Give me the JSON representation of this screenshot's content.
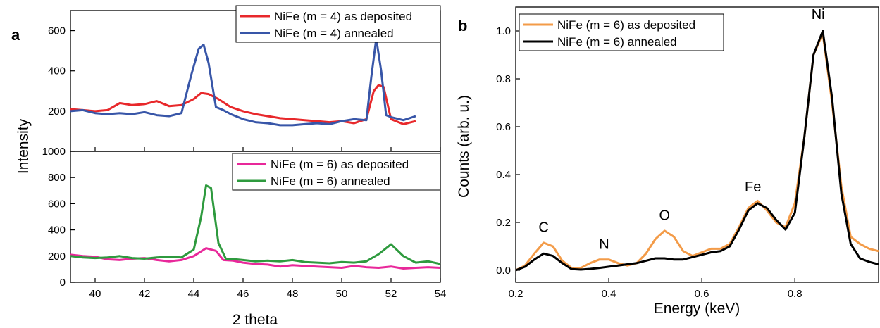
{
  "panels": {
    "a": "a",
    "b": "b"
  },
  "chart_data": [
    {
      "type": "line",
      "panel": "a",
      "subplot": "top",
      "xlabel": "2 theta",
      "ylabel": "Intensity",
      "xlim": [
        39,
        54
      ],
      "ylim": [
        0,
        700
      ],
      "xticks": [
        "40",
        "42",
        "44",
        "46",
        "48",
        "50",
        "52",
        "54"
      ],
      "yticks": [
        "200",
        "400",
        "600"
      ],
      "legend_position": "top-right",
      "grid": false,
      "series": [
        {
          "name": "NiFe (m = 4) as deposited",
          "color": "#e8282b",
          "x": [
            39,
            39.5,
            40,
            40.5,
            41,
            41.5,
            42,
            42.5,
            43,
            43.5,
            44,
            44.3,
            44.6,
            45,
            45.5,
            46,
            46.5,
            47,
            47.5,
            48,
            48.5,
            49,
            49.5,
            50,
            50.5,
            51,
            51.3,
            51.5,
            51.7,
            52,
            52.5,
            53
          ],
          "y": [
            210,
            205,
            200,
            205,
            240,
            230,
            235,
            250,
            225,
            230,
            260,
            290,
            285,
            260,
            220,
            200,
            185,
            175,
            165,
            160,
            155,
            150,
            145,
            150,
            140,
            160,
            300,
            330,
            320,
            160,
            135,
            150
          ]
        },
        {
          "name": "NiFe (m = 4) annealed",
          "color": "#3856a8",
          "x": [
            39,
            39.5,
            40,
            40.5,
            41,
            41.5,
            42,
            42.5,
            43,
            43.5,
            43.9,
            44.2,
            44.4,
            44.6,
            44.9,
            45.2,
            45.5,
            46,
            46.5,
            47,
            47.5,
            48,
            48.5,
            49,
            49.5,
            50,
            50.5,
            51,
            51.2,
            51.4,
            51.6,
            51.8,
            52,
            52.5,
            53
          ],
          "y": [
            200,
            205,
            190,
            185,
            190,
            185,
            195,
            180,
            175,
            190,
            380,
            510,
            530,
            440,
            220,
            205,
            185,
            160,
            145,
            140,
            130,
            130,
            135,
            140,
            135,
            150,
            160,
            155,
            370,
            560,
            400,
            180,
            170,
            155,
            175
          ]
        }
      ]
    },
    {
      "type": "line",
      "panel": "a",
      "subplot": "bottom",
      "xlabel": "2 theta",
      "ylabel": "Intensity",
      "xlim": [
        39,
        54
      ],
      "ylim": [
        0,
        1000
      ],
      "xticks": [
        "40",
        "42",
        "44",
        "46",
        "48",
        "50",
        "52",
        "54"
      ],
      "yticks": [
        "0",
        "200",
        "400",
        "600",
        "800",
        "1000"
      ],
      "legend_position": "top-right",
      "grid": false,
      "series": [
        {
          "name": "NiFe (m = 6) as deposited",
          "color": "#e8289a",
          "x": [
            39,
            39.5,
            40,
            40.5,
            41,
            41.5,
            42,
            42.5,
            43,
            43.5,
            44,
            44.5,
            44.9,
            45.2,
            45.6,
            46,
            46.5,
            47,
            47.5,
            48,
            48.5,
            49,
            49.5,
            50,
            50.5,
            51,
            51.5,
            52,
            52.5,
            53,
            53.5,
            54
          ],
          "y": [
            210,
            200,
            195,
            175,
            170,
            180,
            185,
            170,
            160,
            170,
            200,
            260,
            240,
            170,
            165,
            150,
            140,
            135,
            120,
            130,
            125,
            120,
            115,
            110,
            125,
            115,
            110,
            120,
            105,
            110,
            115,
            110
          ]
        },
        {
          "name": "NiFe (m = 6) annealed",
          "color": "#2e9a3e",
          "x": [
            39,
            39.5,
            40,
            40.5,
            41,
            41.5,
            42,
            42.5,
            43,
            43.5,
            44,
            44.3,
            44.5,
            44.7,
            45,
            45.3,
            45.7,
            46,
            46.5,
            47,
            47.5,
            48,
            48.5,
            49,
            49.5,
            50,
            50.5,
            51,
            51.5,
            52,
            52.5,
            53,
            53.5,
            54
          ],
          "y": [
            200,
            190,
            185,
            190,
            200,
            185,
            180,
            190,
            195,
            190,
            250,
            500,
            740,
            720,
            300,
            180,
            175,
            170,
            160,
            165,
            160,
            170,
            155,
            150,
            145,
            155,
            150,
            160,
            215,
            290,
            200,
            150,
            160,
            140
          ]
        }
      ]
    },
    {
      "type": "line",
      "panel": "b",
      "xlabel": "Energy (keV)",
      "ylabel": "Counts (arb. u.)",
      "xlim": [
        0.2,
        0.98
      ],
      "ylim": [
        -0.05,
        1.1
      ],
      "xticks": [
        "0.2",
        "0.4",
        "0.6",
        "0.8"
      ],
      "yticks": [
        "0.0",
        "0.2",
        "0.4",
        "0.6",
        "0.8",
        "1.0"
      ],
      "legend_position": "top-left",
      "grid": false,
      "annotations": [
        {
          "text": "C",
          "x": 0.26,
          "y": 0.16
        },
        {
          "text": "N",
          "x": 0.39,
          "y": 0.09
        },
        {
          "text": "O",
          "x": 0.52,
          "y": 0.21
        },
        {
          "text": "Fe",
          "x": 0.71,
          "y": 0.33
        },
        {
          "text": "Ni",
          "x": 0.85,
          "y": 1.05
        }
      ],
      "series": [
        {
          "name": "NiFe (m = 6) as deposited",
          "color": "#f39b48",
          "x": [
            0.2,
            0.22,
            0.24,
            0.26,
            0.28,
            0.3,
            0.32,
            0.34,
            0.36,
            0.38,
            0.4,
            0.42,
            0.44,
            0.46,
            0.48,
            0.5,
            0.52,
            0.54,
            0.56,
            0.58,
            0.6,
            0.62,
            0.64,
            0.66,
            0.68,
            0.7,
            0.72,
            0.74,
            0.76,
            0.78,
            0.8,
            0.82,
            0.84,
            0.86,
            0.88,
            0.9,
            0.92,
            0.94,
            0.96,
            0.98
          ],
          "y": [
            0.0,
            0.02,
            0.07,
            0.115,
            0.1,
            0.04,
            0.01,
            0.01,
            0.03,
            0.045,
            0.045,
            0.03,
            0.02,
            0.03,
            0.07,
            0.13,
            0.165,
            0.14,
            0.08,
            0.06,
            0.075,
            0.09,
            0.09,
            0.11,
            0.18,
            0.26,
            0.29,
            0.25,
            0.2,
            0.18,
            0.28,
            0.55,
            0.9,
            0.99,
            0.7,
            0.35,
            0.14,
            0.11,
            0.09,
            0.08
          ]
        },
        {
          "name": "NiFe (m = 6) annealed",
          "color": "#000000",
          "x": [
            0.2,
            0.22,
            0.24,
            0.26,
            0.28,
            0.3,
            0.32,
            0.34,
            0.36,
            0.38,
            0.4,
            0.42,
            0.44,
            0.46,
            0.48,
            0.5,
            0.52,
            0.54,
            0.56,
            0.58,
            0.6,
            0.62,
            0.64,
            0.66,
            0.68,
            0.7,
            0.72,
            0.74,
            0.76,
            0.78,
            0.8,
            0.82,
            0.84,
            0.86,
            0.88,
            0.9,
            0.92,
            0.94,
            0.96,
            0.98
          ],
          "y": [
            0.0,
            0.015,
            0.045,
            0.07,
            0.06,
            0.03,
            0.005,
            0.003,
            0.006,
            0.01,
            0.015,
            0.02,
            0.025,
            0.03,
            0.04,
            0.05,
            0.05,
            0.045,
            0.045,
            0.055,
            0.065,
            0.075,
            0.08,
            0.1,
            0.17,
            0.25,
            0.28,
            0.26,
            0.21,
            0.17,
            0.24,
            0.55,
            0.9,
            1.0,
            0.72,
            0.32,
            0.11,
            0.05,
            0.035,
            0.025
          ]
        }
      ]
    }
  ]
}
